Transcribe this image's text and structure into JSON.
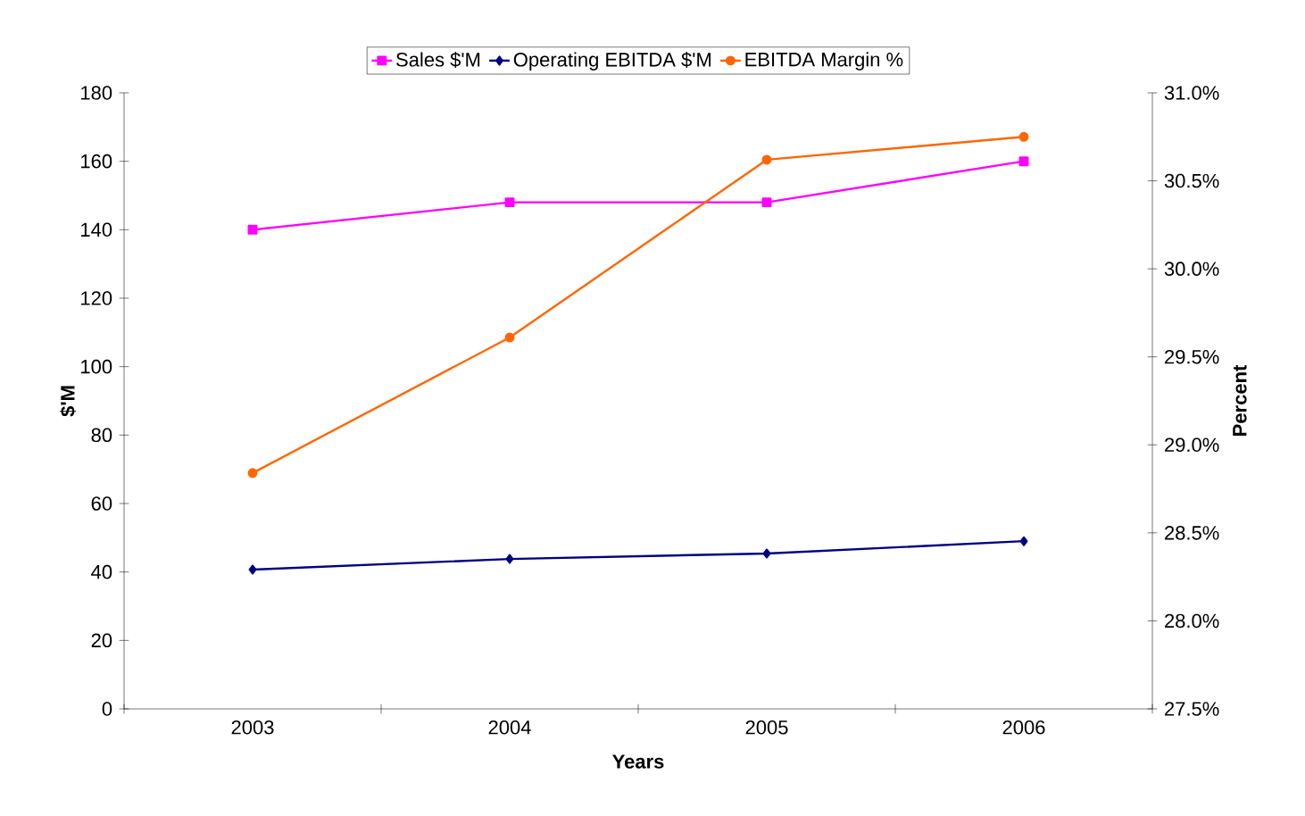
{
  "chart_data": {
    "type": "line",
    "xlabel": "Years",
    "ylabel": "$'M",
    "y2label": "Percent",
    "categories": [
      "2003",
      "2004",
      "2005",
      "2006"
    ],
    "series": [
      {
        "name": "Sales $'M",
        "color": "#ff00ff",
        "marker": "square",
        "values": [
          140,
          148,
          148,
          160
        ]
      },
      {
        "name": "Operating EBITDA $'M",
        "color": "#000080",
        "marker": "diamond",
        "values": [
          40.7,
          43.8,
          45.4,
          49.0
        ]
      },
      {
        "name": "EBITDA Margin %",
        "color": "#ff6600",
        "marker": "circle",
        "axis": "y2",
        "values": [
          28.84,
          29.61,
          30.62,
          30.75
        ]
      }
    ],
    "ylim": [
      0,
      180
    ],
    "yticks": [
      0,
      20,
      40,
      60,
      80,
      100,
      120,
      140,
      160,
      180
    ],
    "y2lim": [
      27.5,
      31.0
    ],
    "y2ticks": [
      {
        "value": 27.5,
        "label": "27.5%"
      },
      {
        "value": 28.0,
        "label": "28.0%"
      },
      {
        "value": 28.5,
        "label": "28.5%"
      },
      {
        "value": 29.0,
        "label": "29.0%"
      },
      {
        "value": 29.5,
        "label": "29.5%"
      },
      {
        "value": 30.0,
        "label": "30.0%"
      },
      {
        "value": 30.5,
        "label": "30.5%"
      },
      {
        "value": 31.0,
        "label": "31.0%"
      }
    ],
    "legend": "top",
    "grid": false,
    "line_style": "solid"
  }
}
